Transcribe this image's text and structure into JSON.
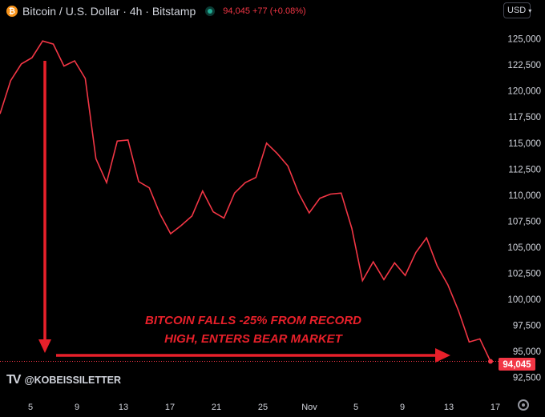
{
  "header": {
    "title": "Bitcoin / U.S. Dollar · 4h · Bitstamp",
    "icon": "bitcoin-icon",
    "status_icon": "live-indicator-icon",
    "quote": "94,045 +77 (+0.08%)"
  },
  "currency_button": {
    "label": "USD",
    "icon": "chevron-down-icon"
  },
  "annotation": {
    "line1": "BITCOIN FALLS -25% FROM RECORD",
    "line2": "HIGH, ENTERS BEAR MARKET"
  },
  "watermark": {
    "logo": "TV",
    "handle": "@KOBEISSILETTER"
  },
  "price_label": "94,045",
  "colors": {
    "line": "#f23645",
    "annotation": "#e8202a",
    "background": "#000000",
    "text": "#d1d4dc"
  },
  "chart_data": {
    "type": "line",
    "title": "Bitcoin / U.S. Dollar · 4h · Bitstamp",
    "y_ticks": [
      125000,
      122500,
      120000,
      117500,
      115000,
      112500,
      110000,
      107500,
      105000,
      102500,
      100000,
      97500,
      95000,
      92500
    ],
    "ylim": [
      91700,
      127200
    ],
    "x_ticks": [
      "5",
      "9",
      "13",
      "17",
      "21",
      "25",
      "Nov",
      "5",
      "9",
      "13",
      "17"
    ],
    "grid": false,
    "last_price": 94045,
    "series": [
      {
        "x": [
          "Oct 1",
          "Oct 2",
          "Oct 3",
          "Oct 4",
          "Oct 5",
          "Oct 6",
          "Oct 7",
          "Oct 8",
          "Oct 9",
          "Oct 10",
          "Oct 11",
          "Oct 12",
          "Oct 13",
          "Oct 14",
          "Oct 15",
          "Oct 16",
          "Oct 17",
          "Oct 18",
          "Oct 19",
          "Oct 20",
          "Oct 21",
          "Oct 22",
          "Oct 23",
          "Oct 24",
          "Oct 25",
          "Oct 26",
          "Oct 27",
          "Oct 28",
          "Oct 29",
          "Oct 30",
          "Oct 31",
          "Nov 1",
          "Nov 2",
          "Nov 3",
          "Nov 4",
          "Nov 5",
          "Nov 6",
          "Nov 7",
          "Nov 8",
          "Nov 9",
          "Nov 10",
          "Nov 11",
          "Nov 12",
          "Nov 13",
          "Nov 14",
          "Nov 15",
          "Nov 16"
        ],
        "values": [
          117800,
          121000,
          122600,
          123200,
          124800,
          124500,
          122400,
          122900,
          121200,
          113500,
          111200,
          115200,
          115300,
          111300,
          110700,
          108200,
          106300,
          107100,
          108000,
          110400,
          108400,
          107800,
          110200,
          111200,
          111700,
          115000,
          114000,
          112800,
          110200,
          108300,
          109700,
          110100,
          110200,
          106800,
          101800,
          103600,
          101900,
          103500,
          102300,
          104500,
          105900,
          103200,
          101400,
          98900,
          95900,
          96200,
          94045
        ]
      }
    ]
  }
}
